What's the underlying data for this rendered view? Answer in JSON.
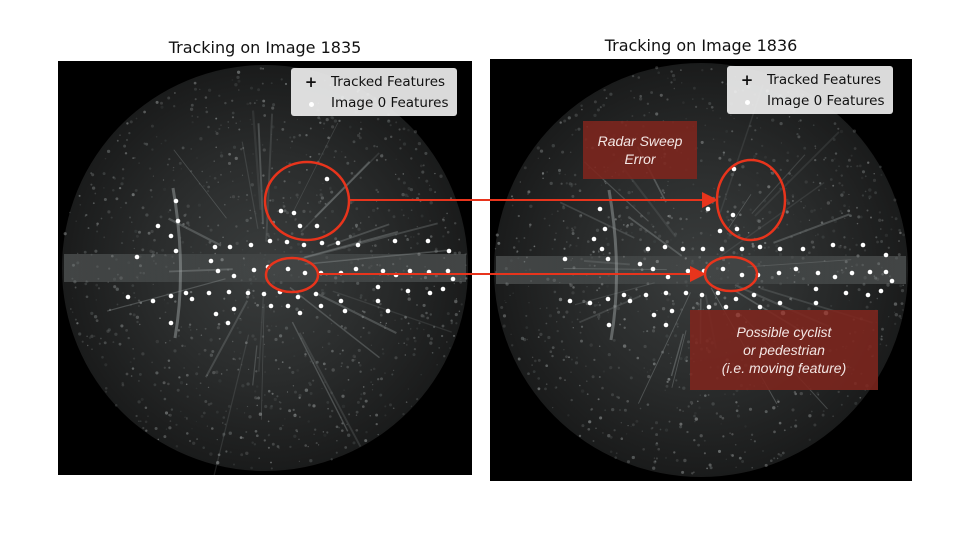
{
  "panels": [
    {
      "title": "Tracking on Image 1835"
    },
    {
      "title": "Tracking on Image 1836"
    }
  ],
  "legend": {
    "tracked_label": "Tracked Features",
    "image0_label": "Image 0 Features"
  },
  "callouts": {
    "sweep_error": "Radar Sweep Error",
    "moving_feature_lines": [
      "Possible cyclist",
      "or pedestrian",
      "(i.e. moving feature)"
    ]
  },
  "colors": {
    "annotation": "#e8341c",
    "callout_bg": "#7e261e",
    "feature_point": "#ffffff"
  }
}
